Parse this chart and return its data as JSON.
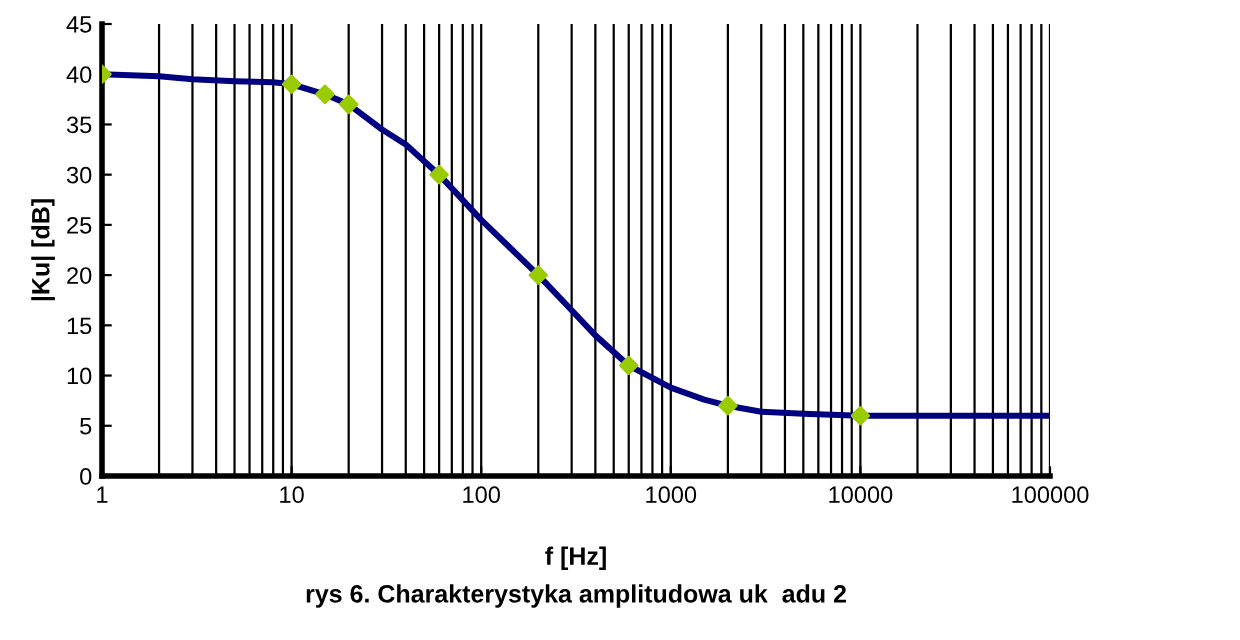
{
  "chart_data": {
    "type": "line",
    "title": "rys 6. Charakterystyka amplitudowa uk  adu 2",
    "xlabel": "f [Hz]",
    "ylabel": "|Ku| [dB]",
    "log": "x",
    "grid": "x",
    "xlim": [
      1,
      100000
    ],
    "xticks": [
      1,
      10,
      100,
      1000,
      10000,
      100000
    ],
    "ylim": [
      0,
      45
    ],
    "yticks": [
      0,
      5,
      10,
      15,
      20,
      25,
      30,
      35,
      40,
      45
    ],
    "series": [
      {
        "color": "#000080",
        "marker": "none",
        "x": [
          1,
          2,
          3,
          5,
          8,
          10,
          15,
          20,
          30,
          40,
          60,
          100,
          200,
          300,
          400,
          600,
          1000,
          1500,
          2000,
          3000,
          5000,
          10000,
          100000
        ],
        "values": [
          40,
          39.8,
          39.5,
          39.3,
          39.2,
          39,
          38,
          37,
          34.5,
          33,
          30,
          25.5,
          20,
          16.5,
          14,
          11,
          8.8,
          7.6,
          7,
          6.4,
          6.2,
          6,
          6
        ]
      },
      {
        "type": "scatter",
        "color": "#99cc00",
        "marker": "diamond",
        "x": [
          1,
          10,
          15,
          20,
          60,
          200,
          600,
          2000,
          10000
        ],
        "values": [
          40,
          39,
          38,
          37,
          30,
          20,
          11,
          7,
          6
        ]
      }
    ]
  }
}
